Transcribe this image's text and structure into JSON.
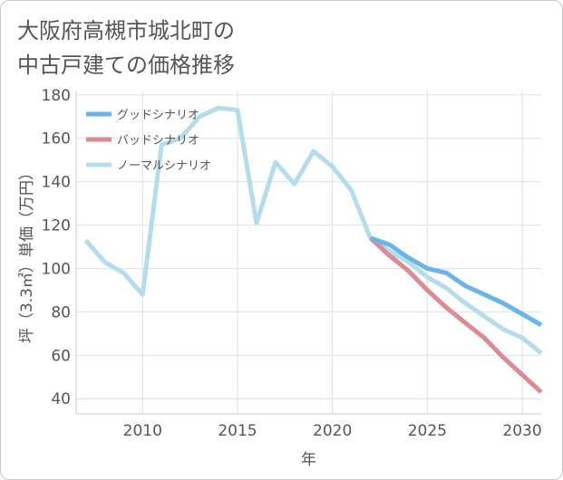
{
  "chart_data": {
    "type": "line",
    "title": "大阪府高槻市城北町の\n中古戸建ての価格推移",
    "xlabel": "年",
    "ylabel": "坪（3.3㎡）単価（万円）",
    "xlim": [
      2006.5,
      2031
    ],
    "ylim": [
      33,
      182
    ],
    "x_ticks": [
      2010,
      2015,
      2020,
      2025,
      2030
    ],
    "y_ticks": [
      40,
      60,
      80,
      100,
      120,
      140,
      160,
      180
    ],
    "grid": true,
    "legend_position": "top-left",
    "series": [
      {
        "name": "グッドシナリオ",
        "color": "#6ab4ea",
        "points": [
          [
            2022,
            114
          ],
          [
            2023,
            111
          ],
          [
            2024,
            105
          ],
          [
            2025,
            100
          ],
          [
            2026,
            98
          ],
          [
            2027,
            92
          ],
          [
            2028,
            88
          ],
          [
            2029,
            84
          ],
          [
            2030,
            79
          ],
          [
            2031,
            74
          ]
        ]
      },
      {
        "name": "バッドシナリオ",
        "color": "#de8a92",
        "points": [
          [
            2022,
            114
          ],
          [
            2023,
            106
          ],
          [
            2024,
            99
          ],
          [
            2025,
            90
          ],
          [
            2026,
            82
          ],
          [
            2027,
            75
          ],
          [
            2028,
            68
          ],
          [
            2029,
            59
          ],
          [
            2030,
            51
          ],
          [
            2031,
            43
          ]
        ]
      },
      {
        "name": "ノーマルシナリオ",
        "color": "#b5dcea",
        "points": [
          [
            2007,
            113
          ],
          [
            2008,
            103
          ],
          [
            2009,
            98
          ],
          [
            2010,
            88
          ],
          [
            2011,
            157
          ],
          [
            2012,
            160
          ],
          [
            2013,
            170
          ],
          [
            2014,
            174
          ],
          [
            2015,
            173
          ],
          [
            2016,
            121
          ],
          [
            2017,
            149
          ],
          [
            2018,
            139
          ],
          [
            2019,
            154
          ],
          [
            2020,
            147
          ],
          [
            2021,
            136
          ],
          [
            2022,
            114
          ],
          [
            2023,
            108
          ],
          [
            2024,
            103
          ],
          [
            2025,
            96
          ],
          [
            2026,
            91
          ],
          [
            2027,
            84
          ],
          [
            2028,
            78
          ],
          [
            2029,
            72
          ],
          [
            2030,
            68
          ],
          [
            2031,
            61
          ]
        ]
      }
    ]
  }
}
